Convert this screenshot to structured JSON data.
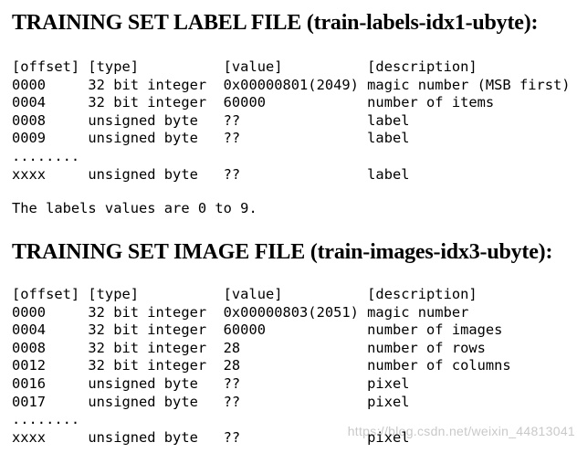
{
  "page": {
    "background_color": "#ffffff",
    "text_color": "#000000"
  },
  "sections": [
    {
      "title": "TRAINING SET LABEL FILE (train-labels-idx1-ubyte):",
      "columns": [
        "[offset]",
        "[type]",
        "[value]",
        "[description]"
      ],
      "rows": [
        [
          "0000",
          "32 bit integer",
          "0x00000801(2049)",
          "magic number (MSB first)"
        ],
        [
          "0004",
          "32 bit integer",
          "60000",
          "number of items"
        ],
        [
          "0008",
          "unsigned byte",
          "??",
          "label"
        ],
        [
          "0009",
          "unsigned byte",
          "??",
          "label"
        ],
        [
          "........"
        ],
        [
          "xxxx",
          "unsigned byte",
          "??",
          "label"
        ]
      ],
      "note": "The labels values are 0 to 9."
    },
    {
      "title": "TRAINING SET IMAGE FILE (train-images-idx3-ubyte):",
      "columns": [
        "[offset]",
        "[type]",
        "[value]",
        "[description]"
      ],
      "rows": [
        [
          "0000",
          "32 bit integer",
          "0x00000803(2051)",
          "magic number"
        ],
        [
          "0004",
          "32 bit integer",
          "60000",
          "number of images"
        ],
        [
          "0008",
          "32 bit integer",
          "28",
          "number of rows"
        ],
        [
          "0012",
          "32 bit integer",
          "28",
          "number of columns"
        ],
        [
          "0016",
          "unsigned byte",
          "??",
          "pixel"
        ],
        [
          "0017",
          "unsigned byte",
          "??",
          "pixel"
        ],
        [
          "........"
        ],
        [
          "xxxx",
          "unsigned byte",
          "??",
          "pixel"
        ]
      ],
      "note": ""
    }
  ],
  "watermark": {
    "text": "https://blog.csdn.net/weixin_44813041",
    "color": "#c9c9c9"
  }
}
